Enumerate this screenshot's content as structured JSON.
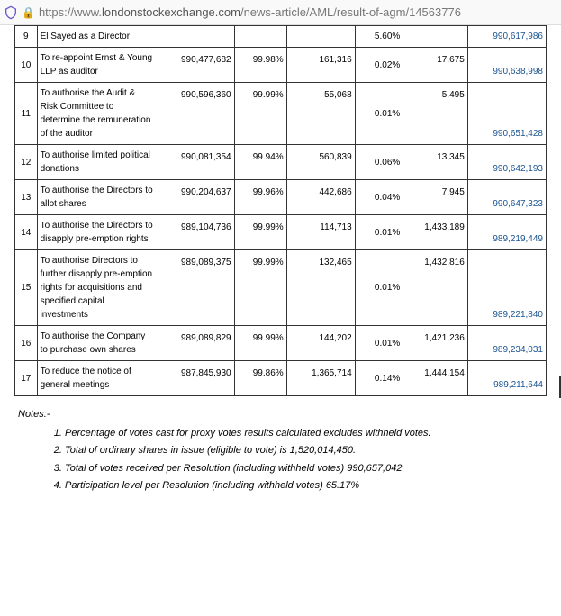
{
  "url": {
    "prefix": "https://www.",
    "domain": "londonstockexchange.com",
    "path": "/news-article/AML/result-of-agm/14563776"
  },
  "partial_top_row": {
    "num": "9",
    "desc": "El Sayed as a Director",
    "c6": "5.60%",
    "c8": "990,617,986"
  },
  "rows": [
    {
      "num": "10",
      "desc": "To re-appoint Ernst & Young LLP as auditor",
      "c3": "990,477,682",
      "c4": "99.98%",
      "c5": "161,316",
      "c6": "0.02%",
      "c7": "17,675",
      "c8": "990,638,998"
    },
    {
      "num": "11",
      "desc": "To authorise the Audit & Risk Committee to determine the remuneration of the auditor",
      "c3": "990,596,360",
      "c4": "99.99%",
      "c5": "55,068",
      "c6": "0.01%",
      "c7": "5,495",
      "c8": "990,651,428"
    },
    {
      "num": "12",
      "desc": "To authorise limited political donations",
      "c3": "990,081,354",
      "c4": "99.94%",
      "c5": "560,839",
      "c6": "0.06%",
      "c7": "13,345",
      "c8": "990,642,193"
    },
    {
      "num": "13",
      "desc": "To authorise the Directors to allot shares",
      "c3": "990,204,637",
      "c4": "99.96%",
      "c5": "442,686",
      "c6": "0.04%",
      "c7": "7,945",
      "c8": "990,647,323"
    },
    {
      "num": "14",
      "desc": "To authorise the Directors to disapply pre-emption rights",
      "c3": "989,104,736",
      "c4": "99.99%",
      "c5": "114,713",
      "c6": "0.01%",
      "c7": "1,433,189",
      "c8": "989,219,449"
    },
    {
      "num": "15",
      "desc": "To authorise Directors to further disapply pre-emption rights for acquisitions and specified capital investments",
      "c3": "989,089,375",
      "c4": "99.99%",
      "c5": "132,465",
      "c6": "0.01%",
      "c7": "1,432,816",
      "c8": "989,221,840"
    },
    {
      "num": "16",
      "desc": "To authorise the Company to purchase own shares",
      "c3": "989,089,829",
      "c4": "99.99%",
      "c5": "144,202",
      "c6": "0.01%",
      "c7": "1,421,236",
      "c8": "989,234,031"
    },
    {
      "num": "17",
      "desc": "To reduce the notice of general meetings",
      "c3": "987,845,930",
      "c4": "99.86%",
      "c5": "1,365,714",
      "c6": "0.14%",
      "c7": "1,444,154",
      "c8": "989,211,644"
    }
  ],
  "notes_heading": "Notes:-",
  "notes": [
    "Percentage of votes cast for proxy votes results calculated excludes withheld votes.",
    "Total of ordinary shares in issue (eligible to vote) is 1,520,014,450.",
    "Total of votes received per Resolution (including withheld votes) 990,657,042",
    "Participation level per Resolution (including withheld votes) 65.17%"
  ],
  "colors": {
    "link": "#1a5490",
    "border": "#333333",
    "addr_bg": "#f9f9fa",
    "text_muted": "#555555"
  }
}
